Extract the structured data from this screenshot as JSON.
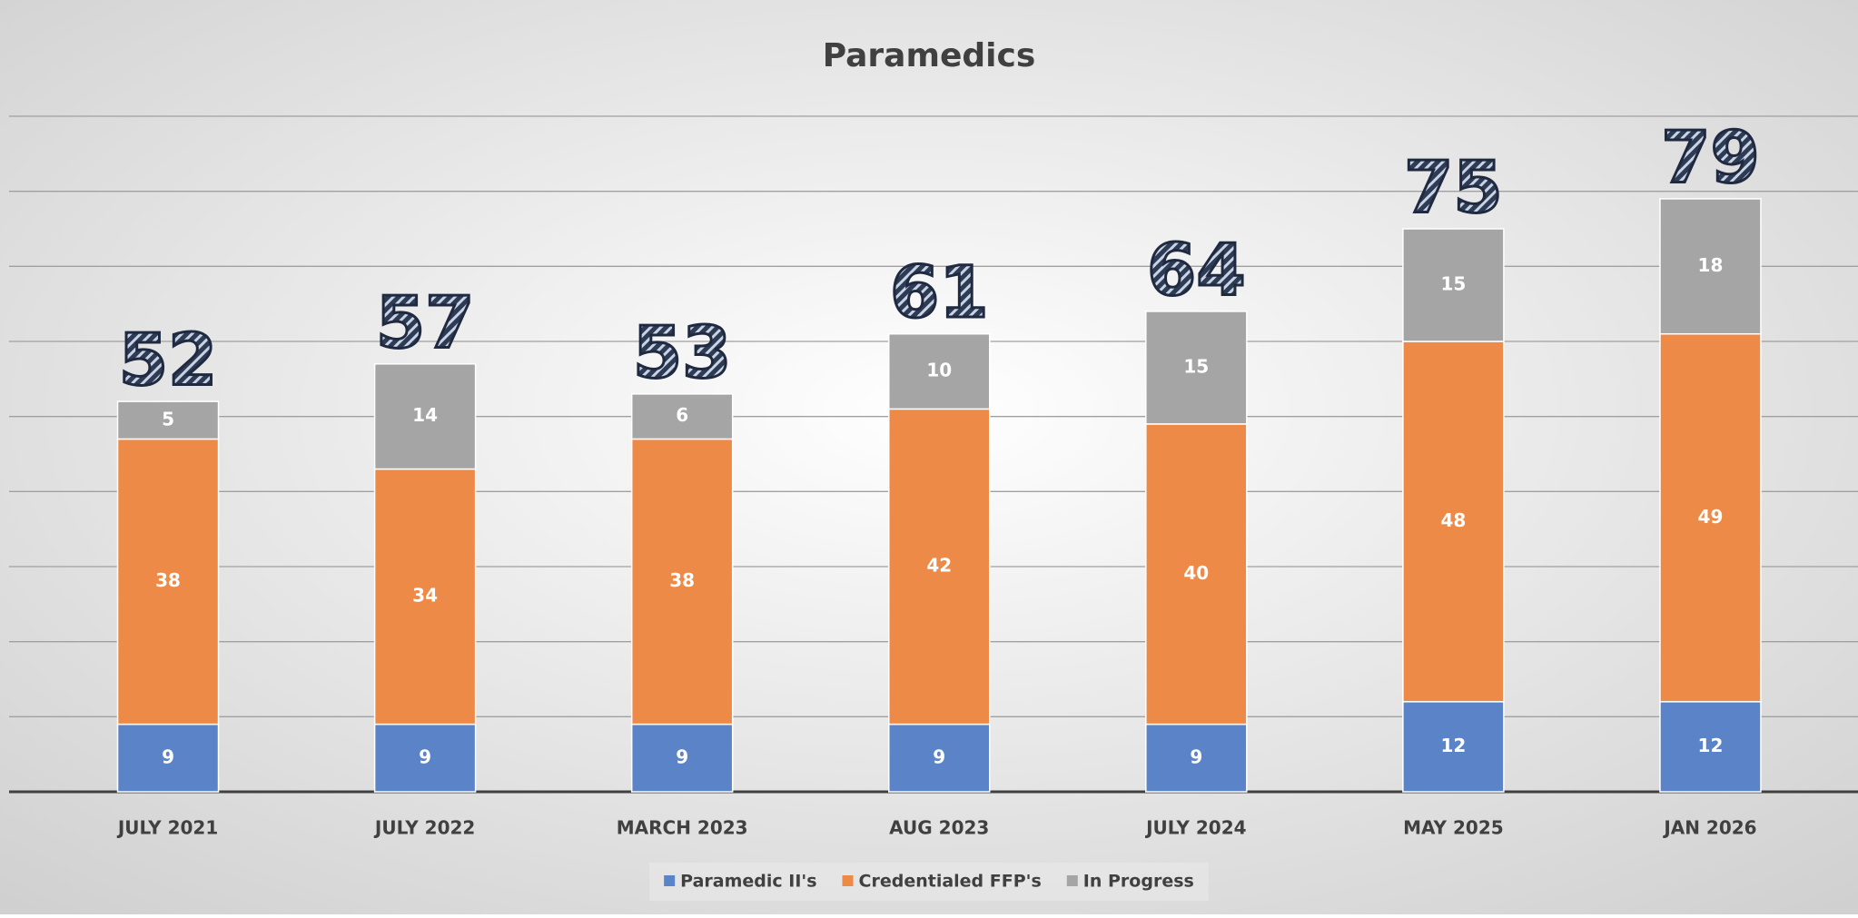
{
  "chart_data": {
    "type": "stacked_bar",
    "title": "Paramedics",
    "categories": [
      "JULY 2021",
      "JULY 2022",
      "MARCH 2023",
      "AUG 2023",
      "JULY 2024",
      "MAY 2025",
      "JAN 2026"
    ],
    "series": [
      {
        "name": "Paramedic II's",
        "color": "#5b84c8",
        "values": [
          9,
          9,
          9,
          9,
          9,
          12,
          12
        ]
      },
      {
        "name": "Credentialed FFP's",
        "color": "#ee8a48",
        "values": [
          38,
          34,
          38,
          42,
          40,
          48,
          49
        ]
      },
      {
        "name": "In Progress",
        "color": "#a5a5a5",
        "values": [
          5,
          14,
          6,
          10,
          15,
          15,
          18
        ]
      }
    ],
    "totals": [
      52,
      57,
      53,
      61,
      64,
      75,
      79
    ],
    "ylim": [
      0,
      90
    ],
    "yticks": [
      0,
      10,
      20,
      30,
      40,
      50,
      60,
      70,
      80,
      90
    ],
    "grid": true,
    "legend": "bottom"
  }
}
